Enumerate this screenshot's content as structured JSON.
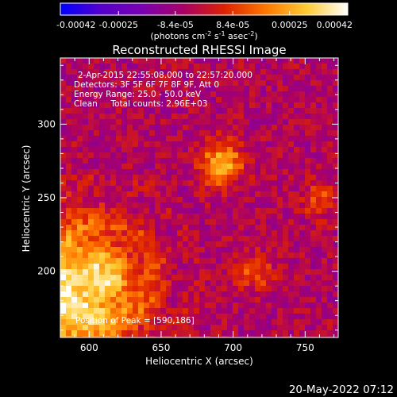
{
  "chart_data": {
    "type": "heatmap",
    "title": "Reconstructed RHESSI Image",
    "xlabel": "Heliocentric X (arcsec)",
    "ylabel": "Heliocentric Y (arcsec)",
    "xlim": [
      580,
      773
    ],
    "ylim": [
      155,
      345
    ],
    "xticks": [
      "600",
      "650",
      "700",
      "750"
    ],
    "yticks": [
      "200",
      "250",
      "300"
    ],
    "xtick_values": [
      600,
      650,
      700,
      750
    ],
    "ytick_values": [
      200,
      250,
      300
    ],
    "colorbar": {
      "ticks": [
        "-0.00042",
        "-0.00025",
        "-8.4e-05",
        "8.4e-05",
        "0.00025",
        "0.00042"
      ],
      "tick_values": [
        -0.00042,
        -0.00025,
        -8.4e-05,
        8.4e-05,
        0.00025,
        0.00042
      ],
      "range": [
        -0.00042,
        0.00042
      ],
      "units_line1": "(photons cm",
      "units_sup1": "-2",
      "units_mid1": " s",
      "units_sup2": "-1",
      "units_mid2": " asec",
      "units_sup3": "-2",
      "units_end": ")",
      "colormap": [
        "#0000ff",
        "#5500cc",
        "#7a00b0",
        "#aa0066",
        "#dd2200",
        "#ff7700",
        "#ffcc33",
        "#ffffff"
      ]
    },
    "annotations": [
      "2-Apr-2015 22:55:08.000 to 22:57:20.000",
      "Detectors: 3F 5F 6F 7F 8F 9F, Att 0",
      "Energy Range: 25.0 - 50.0 keV",
      "Clean     Total counts: 2.96E+03"
    ],
    "peak_label": "Position of Peak = [590,186]",
    "peak_position": [
      590,
      186
    ],
    "sources": [
      {
        "x": 590,
        "y": 186,
        "peak": 0.00042
      },
      {
        "x": 692,
        "y": 273,
        "peak": 0.00034
      },
      {
        "x": 715,
        "y": 200,
        "peak": 0.00018
      },
      {
        "x": 760,
        "y": 250,
        "peak": 0.00015
      }
    ],
    "timestamp": "20-May-2022 07:12"
  }
}
